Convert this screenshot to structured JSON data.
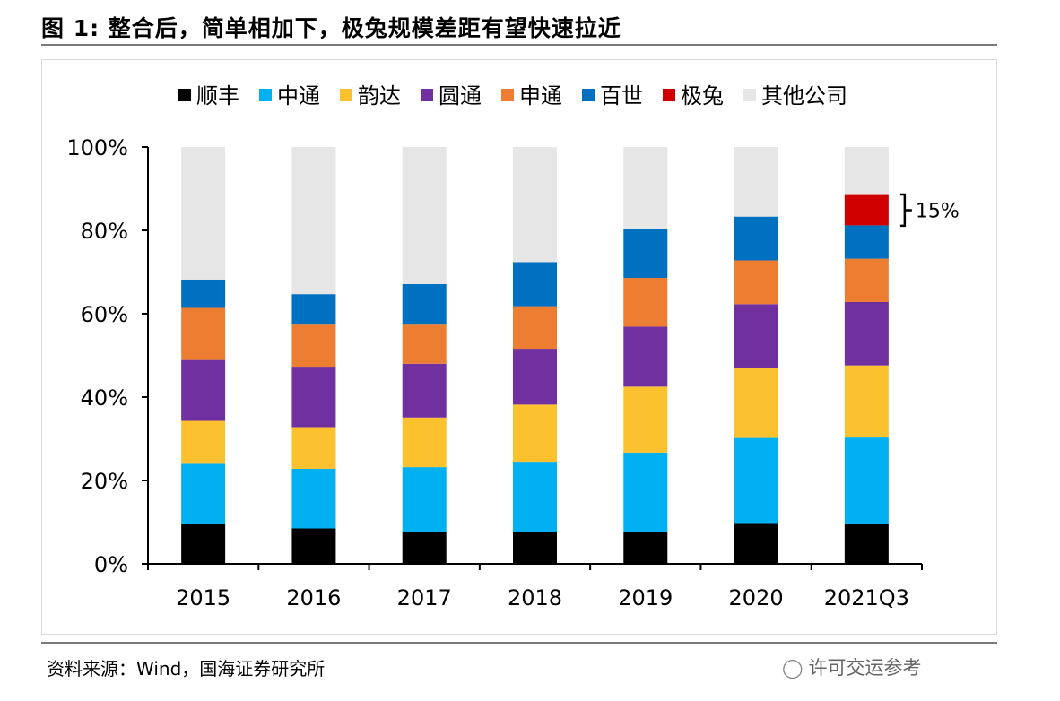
{
  "figure": {
    "title": "图 1:  整合后，简单相加下，极兔规模差距有望快速拉近",
    "source": "资料来源：Wind，国海证券研究所",
    "watermark": "许可交运参考"
  },
  "chart_data": {
    "type": "bar",
    "stacked": true,
    "categories": [
      "2015",
      "2016",
      "2017",
      "2018",
      "2019",
      "2020",
      "2021Q3"
    ],
    "ylim": [
      0,
      100
    ],
    "yticks": [
      0,
      20,
      40,
      60,
      80,
      100
    ],
    "ytick_labels": [
      "0%",
      "20%",
      "40%",
      "60%",
      "80%",
      "100%"
    ],
    "legend_position": "top",
    "series": [
      {
        "name": "顺丰",
        "color": "#000000",
        "values": [
          9.5,
          8.5,
          7.7,
          7.6,
          7.6,
          9.8,
          9.6
        ]
      },
      {
        "name": "中通",
        "color": "#00b0f0",
        "values": [
          14.5,
          14.3,
          15.5,
          16.9,
          19.1,
          20.4,
          20.7
        ]
      },
      {
        "name": "韵达",
        "color": "#fcc12e",
        "values": [
          10.3,
          10.0,
          11.9,
          13.7,
          15.8,
          16.9,
          17.3
        ]
      },
      {
        "name": "圆通",
        "color": "#7030a0",
        "values": [
          14.6,
          14.5,
          12.9,
          13.4,
          14.4,
          15.2,
          15.2
        ]
      },
      {
        "name": "申通",
        "color": "#ed7d31",
        "values": [
          12.5,
          10.3,
          9.6,
          10.2,
          11.7,
          10.5,
          10.4
        ]
      },
      {
        "name": "百世",
        "color": "#0070c0",
        "values": [
          6.8,
          7.1,
          9.5,
          10.6,
          11.8,
          10.5,
          8.0
        ]
      },
      {
        "name": "极兔",
        "color": "#d00000",
        "values": [
          0,
          0,
          0,
          0,
          0,
          0,
          7.5
        ]
      },
      {
        "name": "其他公司",
        "color": "#e6e6e6",
        "values": [
          31.8,
          35.3,
          32.9,
          27.6,
          19.6,
          16.7,
          11.3
        ]
      }
    ],
    "annotation": {
      "label": "15%",
      "category": "2021Q3",
      "from": 81.1,
      "to": 88.6
    }
  }
}
